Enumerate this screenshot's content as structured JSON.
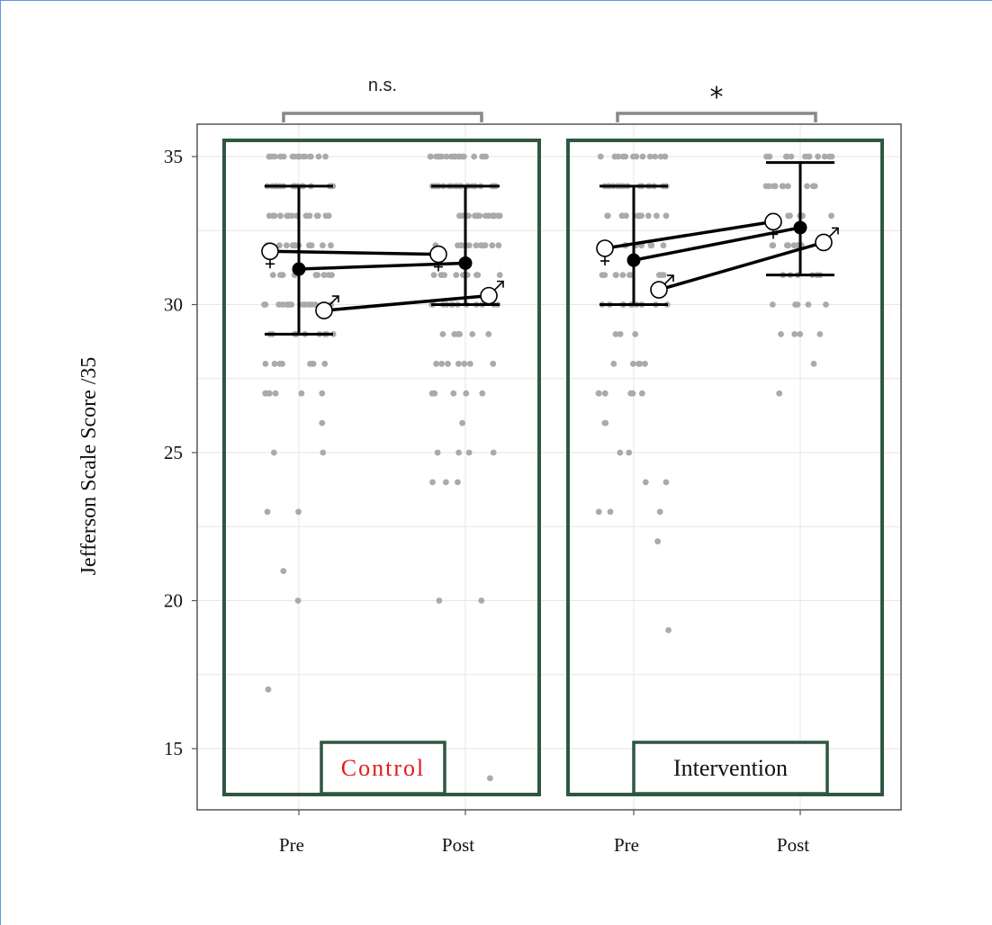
{
  "chart_data": {
    "type": "scatter",
    "ylabel": "Jefferson Scale Score /35",
    "ylim": [
      13.5,
      36
    ],
    "yticks": [
      15,
      20,
      25,
      30,
      35
    ],
    "grid": true,
    "categories": [
      "Pre",
      "Post"
    ],
    "colors": {
      "points": "#aaaaaa",
      "panel_border": "#2e5741",
      "control_label": "#e01b1b",
      "bracket": "#888888",
      "lines": "#000000"
    },
    "panels": [
      {
        "group_label": "Control",
        "significance": "n.s.",
        "mean": {
          "Pre": 31.2,
          "Post": 31.4
        },
        "error": {
          "Pre": [
            29,
            34
          ],
          "Post": [
            30,
            34
          ]
        },
        "female": {
          "Pre": 31.8,
          "Post": 31.7,
          "symbol": "♀"
        },
        "male": {
          "Pre": 29.8,
          "Post": 30.3,
          "symbol": "♂"
        },
        "points": {
          "Pre": [
            [
              35,
              18
            ],
            [
              34,
              19
            ],
            [
              33,
              16
            ],
            [
              32,
              14
            ],
            [
              31,
              12
            ],
            [
              30,
              14
            ],
            [
              29,
              10
            ],
            [
              28,
              8
            ],
            [
              27,
              6
            ],
            [
              26,
              1
            ],
            [
              25,
              2
            ],
            [
              23,
              2
            ],
            [
              21,
              1
            ],
            [
              20,
              1
            ],
            [
              17,
              1
            ]
          ],
          "Post": [
            [
              35,
              18
            ],
            [
              34,
              20
            ],
            [
              33,
              17
            ],
            [
              32,
              12
            ],
            [
              31,
              10
            ],
            [
              30,
              12
            ],
            [
              29,
              6
            ],
            [
              28,
              7
            ],
            [
              27,
              5
            ],
            [
              26,
              1
            ],
            [
              25,
              4
            ],
            [
              24,
              3
            ],
            [
              20,
              2
            ],
            [
              14,
              1
            ]
          ]
        }
      },
      {
        "group_label": "Intervention",
        "significance": "*",
        "mean": {
          "Pre": 31.5,
          "Post": 32.6
        },
        "error": {
          "Pre": [
            30,
            34
          ],
          "Post": [
            31,
            34.8
          ]
        },
        "female": {
          "Pre": 31.9,
          "Post": 32.8,
          "symbol": "♀"
        },
        "male": {
          "Pre": 30.5,
          "Post": 32.1,
          "symbol": "♂"
        },
        "points": {
          "Pre": [
            [
              35,
              14
            ],
            [
              34,
              16
            ],
            [
              33,
              12
            ],
            [
              32,
              10
            ],
            [
              31,
              10
            ],
            [
              30,
              10
            ],
            [
              29,
              3
            ],
            [
              28,
              5
            ],
            [
              27,
              6
            ],
            [
              26,
              2
            ],
            [
              25,
              2
            ],
            [
              24,
              2
            ],
            [
              23,
              3
            ],
            [
              22,
              1
            ],
            [
              19,
              1
            ]
          ],
          "Post": [
            [
              35,
              12
            ],
            [
              34,
              10
            ],
            [
              33,
              10
            ],
            [
              32,
              9
            ],
            [
              31,
              7
            ],
            [
              30,
              5
            ],
            [
              29,
              4
            ],
            [
              28,
              1
            ],
            [
              27,
              1
            ]
          ]
        }
      }
    ]
  }
}
